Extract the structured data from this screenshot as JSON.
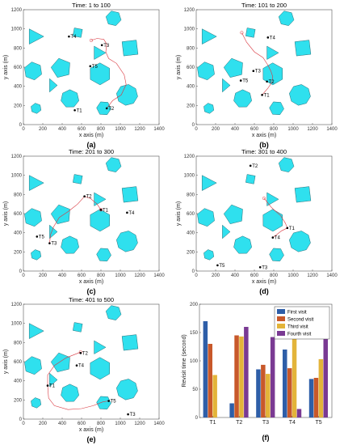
{
  "chart_data": [
    {
      "type": "scatter",
      "caption": "(a)",
      "title": "Time: 1 to 100",
      "xlabel": "x axis (m)",
      "ylabel": "y axis (m)",
      "xlim": [
        0,
        1400
      ],
      "ylim": [
        0,
        1200
      ],
      "xticks": [
        "0",
        "200",
        "400",
        "600",
        "800",
        "1000",
        "1200",
        "1400"
      ],
      "yticks": [
        "0",
        "200",
        "400",
        "600",
        "800",
        "1000",
        "1200"
      ],
      "targets": [
        {
          "name": "T4",
          "x": 470,
          "y": 920
        },
        {
          "name": "T3",
          "x": 810,
          "y": 830
        },
        {
          "name": "T5",
          "x": 690,
          "y": 610
        },
        {
          "name": "T2",
          "x": 860,
          "y": 170
        },
        {
          "name": "T1",
          "x": 530,
          "y": 150
        }
      ],
      "path": [
        [
          700,
          880
        ],
        [
          760,
          900
        ],
        [
          830,
          890
        ],
        [
          860,
          840
        ],
        [
          850,
          760
        ],
        [
          880,
          690
        ],
        [
          960,
          640
        ],
        [
          1040,
          520
        ],
        [
          1060,
          420
        ],
        [
          1010,
          310
        ],
        [
          920,
          250
        ],
        [
          860,
          170
        ]
      ]
    },
    {
      "type": "scatter",
      "caption": "(b)",
      "title": "Time: 101 to 200",
      "xlabel": "x axis (m)",
      "ylabel": "y axis (m)",
      "xlim": [
        0,
        1400
      ],
      "ylim": [
        0,
        1200
      ],
      "xticks": [
        "0",
        "200",
        "400",
        "600",
        "800",
        "1000",
        "1200",
        "1400"
      ],
      "yticks": [
        "0",
        "200",
        "400",
        "600",
        "800",
        "1000",
        "1200"
      ],
      "targets": [
        {
          "name": "T4",
          "x": 740,
          "y": 910
        },
        {
          "name": "T3",
          "x": 590,
          "y": 560
        },
        {
          "name": "T5",
          "x": 460,
          "y": 460
        },
        {
          "name": "T2",
          "x": 730,
          "y": 450
        },
        {
          "name": "T1",
          "x": 680,
          "y": 310
        }
      ],
      "path": [
        [
          470,
          960
        ],
        [
          520,
          860
        ],
        [
          600,
          760
        ],
        [
          690,
          700
        ],
        [
          740,
          620
        ],
        [
          770,
          560
        ],
        [
          790,
          500
        ],
        [
          780,
          440
        ],
        [
          740,
          380
        ],
        [
          680,
          310
        ]
      ]
    },
    {
      "type": "scatter",
      "caption": "(c)",
      "title": "Time: 201 to 300",
      "xlabel": "x axis (m)",
      "ylabel": "y axis (m)",
      "xlim": [
        0,
        1400
      ],
      "ylim": [
        0,
        1200
      ],
      "xticks": [
        "0",
        "200",
        "400",
        "600",
        "800",
        "1000",
        "1200",
        "1400"
      ],
      "yticks": [
        "0",
        "200",
        "400",
        "600",
        "800",
        "1000",
        "1200"
      ],
      "targets": [
        {
          "name": "T2",
          "x": 630,
          "y": 780
        },
        {
          "name": "T1",
          "x": 800,
          "y": 640
        },
        {
          "name": "T4",
          "x": 1070,
          "y": 610
        },
        {
          "name": "T5",
          "x": 140,
          "y": 360
        },
        {
          "name": "T3",
          "x": 270,
          "y": 290
        }
      ],
      "path": [
        [
          800,
          640
        ],
        [
          760,
          700
        ],
        [
          690,
          760
        ],
        [
          630,
          780
        ],
        [
          560,
          700
        ],
        [
          460,
          620
        ],
        [
          370,
          560
        ],
        [
          310,
          460
        ],
        [
          280,
          380
        ],
        [
          270,
          290
        ]
      ]
    },
    {
      "type": "scatter",
      "caption": "(d)",
      "title": "Time: 301 to 400",
      "xlabel": "x axis (m)",
      "ylabel": "y axis (m)",
      "xlim": [
        0,
        1400
      ],
      "ylim": [
        0,
        1200
      ],
      "xticks": [
        "0",
        "200",
        "400",
        "600",
        "800",
        "1000",
        "1200",
        "1400"
      ],
      "yticks": [
        "0",
        "200",
        "400",
        "600",
        "800",
        "1000",
        "1200"
      ],
      "targets": [
        {
          "name": "T2",
          "x": 560,
          "y": 1100
        },
        {
          "name": "T1",
          "x": 940,
          "y": 450
        },
        {
          "name": "T4",
          "x": 790,
          "y": 350
        },
        {
          "name": "T5",
          "x": 220,
          "y": 60
        },
        {
          "name": "T3",
          "x": 660,
          "y": 40
        }
      ],
      "path": [
        [
          700,
          760
        ],
        [
          780,
          660
        ],
        [
          870,
          580
        ],
        [
          920,
          500
        ],
        [
          940,
          450
        ],
        [
          880,
          420
        ],
        [
          830,
          380
        ],
        [
          790,
          350
        ]
      ]
    },
    {
      "type": "scatter",
      "caption": "(e)",
      "title": "Time: 401 to 500",
      "xlabel": "x axis (m)",
      "ylabel": "y axis (m)",
      "xlim": [
        0,
        1400
      ],
      "ylim": [
        0,
        1200
      ],
      "xticks": [
        "0",
        "200",
        "400",
        "600",
        "800",
        "1000",
        "1200",
        "1400"
      ],
      "yticks": [
        "0",
        "200",
        "400",
        "600",
        "800",
        "1000",
        "1200"
      ],
      "targets": [
        {
          "name": "T2",
          "x": 590,
          "y": 690
        },
        {
          "name": "T4",
          "x": 550,
          "y": 560
        },
        {
          "name": "T1",
          "x": 250,
          "y": 350
        },
        {
          "name": "T5",
          "x": 880,
          "y": 190
        },
        {
          "name": "T3",
          "x": 1080,
          "y": 50
        }
      ],
      "path": [
        [
          590,
          700
        ],
        [
          440,
          640
        ],
        [
          320,
          560
        ],
        [
          250,
          460
        ],
        [
          250,
          350
        ],
        [
          260,
          220
        ],
        [
          320,
          140
        ],
        [
          460,
          100
        ],
        [
          600,
          110
        ],
        [
          720,
          140
        ],
        [
          820,
          180
        ],
        [
          880,
          190
        ]
      ]
    },
    {
      "type": "bar",
      "caption": "(f)",
      "title": "",
      "xlabel": "",
      "ylabel": "Revisit time (second)",
      "ylim": [
        0,
        200
      ],
      "yticks": [
        "0",
        "50",
        "100",
        "150",
        "200"
      ],
      "categories": [
        "T1",
        "T2",
        "T3",
        "T4",
        "T5"
      ],
      "series": [
        {
          "name": "First visit",
          "color": "#2e5ea8",
          "values": [
            170,
            25,
            85,
            120,
            68
          ]
        },
        {
          "name": "Second visit",
          "color": "#c8582a",
          "values": [
            130,
            145,
            93,
            87,
            70
          ]
        },
        {
          "name": "Third visit",
          "color": "#e3b43a",
          "values": [
            75,
            143,
            77,
            162,
            103
          ]
        },
        {
          "name": "Fourth visit",
          "color": "#7a3a93",
          "values": [
            0,
            160,
            142,
            15,
            182
          ]
        }
      ],
      "legend_position": "top-right"
    }
  ]
}
